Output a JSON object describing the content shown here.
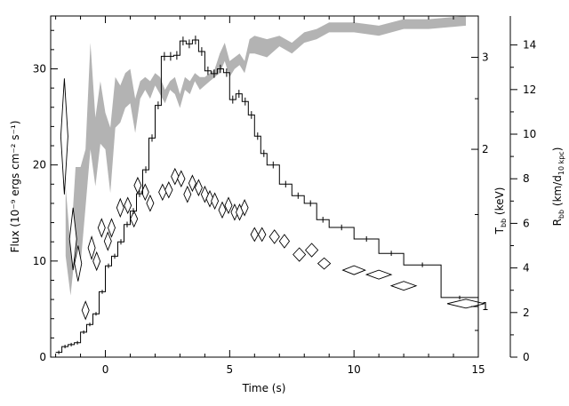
{
  "chart_data": {
    "type": "line",
    "title": "",
    "xlabel": "Time (s)",
    "ylabel": "Flux (10⁻⁹ ergs cm⁻² s⁻¹)",
    "xlim": [
      -2.2,
      15
    ],
    "ylim": [
      0,
      35.5
    ],
    "x_ticks": [
      0,
      5,
      10,
      15
    ],
    "y_ticks": [
      0,
      10,
      20,
      30
    ],
    "right_axes": [
      {
        "name": "T_bb",
        "label": "T",
        "label_sub": "bb",
        "label_unit": " (keV)",
        "scale": "log",
        "range": [
          0.8,
          3.6
        ],
        "ticks": [
          1,
          2,
          3
        ]
      },
      {
        "name": "R_bb",
        "label": "R",
        "label_sub": "bb",
        "label_unit": " (km/d",
        "label_unit_sub": "10 kpc",
        "label_unit_end": ")",
        "scale": "linear",
        "range": [
          0,
          15.3
        ],
        "ticks": [
          0,
          2,
          4,
          6,
          8,
          10,
          12,
          14
        ]
      }
    ],
    "series": [
      {
        "style": "histogram with error bars",
        "axis": "flux",
        "points": [
          [
            -2.0,
            0.5
          ],
          [
            -1.75,
            1.1
          ],
          [
            -1.5,
            1.3
          ],
          [
            -1.25,
            1.5
          ],
          [
            -1.0,
            2.6
          ],
          [
            -0.75,
            3.4
          ],
          [
            -0.5,
            4.5
          ],
          [
            -0.25,
            6.8
          ],
          [
            0.0,
            9.5
          ],
          [
            0.25,
            10.5
          ],
          [
            0.5,
            12.0
          ],
          [
            0.75,
            13.8
          ],
          [
            1.0,
            15.2
          ],
          [
            1.25,
            17.0
          ],
          [
            1.5,
            19.5
          ],
          [
            1.75,
            22.8
          ],
          [
            2.0,
            26.2
          ],
          [
            2.25,
            31.3
          ],
          [
            2.5,
            31.3
          ],
          [
            2.75,
            31.4
          ],
          [
            3.0,
            32.9
          ],
          [
            3.25,
            32.6
          ],
          [
            3.5,
            33.0
          ],
          [
            3.75,
            31.8
          ],
          [
            4.0,
            29.8
          ],
          [
            4.25,
            29.5
          ],
          [
            4.5,
            30.0
          ],
          [
            4.75,
            29.6
          ],
          [
            5.0,
            26.8
          ],
          [
            5.25,
            27.4
          ],
          [
            5.5,
            26.6
          ],
          [
            5.75,
            25.2
          ],
          [
            6.0,
            23.0
          ],
          [
            6.25,
            21.2
          ],
          [
            6.5,
            20.0
          ],
          [
            7.0,
            18.0
          ],
          [
            7.5,
            16.8
          ],
          [
            8.0,
            16.0
          ],
          [
            8.5,
            14.3
          ],
          [
            9.0,
            13.5
          ],
          [
            10.0,
            12.3
          ],
          [
            11.0,
            10.8
          ],
          [
            12.0,
            9.6
          ],
          [
            13.5,
            6.2
          ],
          [
            15.0,
            6.2
          ]
        ]
      },
      {
        "style": "shaded band",
        "axis": "T_bb",
        "x": [
          -1.6,
          -1.4,
          -1.2,
          -1.0,
          -0.8,
          -0.6,
          -0.4,
          -0.2,
          0.0,
          0.2,
          0.4,
          0.6,
          0.8,
          1.0,
          1.2,
          1.4,
          1.6,
          1.8,
          2.0,
          2.2,
          2.4,
          2.6,
          2.8,
          3.0,
          3.2,
          3.4,
          3.6,
          3.8,
          4.0,
          4.2,
          4.4,
          4.6,
          4.8,
          5.0,
          5.2,
          5.4,
          5.6,
          5.8,
          6.0,
          6.5,
          7.0,
          7.5,
          8.0,
          8.5,
          9.0,
          10.0,
          11.0,
          12.0,
          13.0,
          14.5
        ],
        "lower": [
          1.25,
          1.05,
          1.3,
          1.2,
          1.55,
          2.0,
          1.7,
          2.05,
          2.0,
          1.65,
          2.2,
          2.25,
          2.4,
          2.45,
          2.15,
          2.5,
          2.6,
          2.5,
          2.65,
          2.55,
          2.45,
          2.6,
          2.55,
          2.4,
          2.6,
          2.55,
          2.7,
          2.6,
          2.65,
          2.7,
          2.75,
          2.8,
          2.95,
          2.75,
          2.85,
          2.9,
          2.8,
          3.05,
          3.05,
          3.0,
          3.15,
          3.05,
          3.2,
          3.25,
          3.35,
          3.35,
          3.3,
          3.4,
          3.4,
          3.45
        ],
        "upper": [
          1.7,
          1.3,
          1.85,
          1.85,
          2.0,
          3.2,
          2.3,
          2.7,
          2.35,
          2.2,
          2.75,
          2.65,
          2.8,
          2.85,
          2.5,
          2.7,
          2.75,
          2.7,
          2.8,
          2.75,
          2.6,
          2.7,
          2.75,
          2.55,
          2.75,
          2.7,
          2.8,
          2.75,
          2.75,
          2.8,
          2.85,
          3.05,
          3.2,
          2.95,
          3.0,
          3.05,
          2.95,
          3.25,
          3.3,
          3.25,
          3.3,
          3.2,
          3.35,
          3.4,
          3.5,
          3.5,
          3.45,
          3.55,
          3.55,
          3.6
        ]
      },
      {
        "style": "diamonds with x error bars",
        "axis": "R_bb",
        "points": [
          [
            -1.65,
            9.9,
            0.12,
            2.6
          ],
          [
            -1.3,
            5.3,
            0.1,
            1.4
          ],
          [
            -1.1,
            4.2,
            0.1,
            0.8
          ],
          [
            -0.8,
            2.1,
            0.1,
            0.4
          ],
          [
            -0.55,
            4.9,
            0.1,
            0.5
          ],
          [
            -0.35,
            4.3,
            0.1,
            0.4
          ],
          [
            -0.15,
            5.8,
            0.1,
            0.4
          ],
          [
            0.1,
            5.2,
            0.1,
            0.4
          ],
          [
            0.25,
            5.8,
            0.1,
            0.4
          ],
          [
            0.6,
            6.7,
            0.12,
            0.4
          ],
          [
            0.9,
            6.8,
            0.12,
            0.35
          ],
          [
            1.15,
            6.2,
            0.12,
            0.35
          ],
          [
            1.3,
            7.7,
            0.12,
            0.35
          ],
          [
            1.6,
            7.4,
            0.12,
            0.35
          ],
          [
            1.8,
            6.9,
            0.12,
            0.35
          ],
          [
            2.3,
            7.4,
            0.15,
            0.35
          ],
          [
            2.55,
            7.5,
            0.15,
            0.35
          ],
          [
            2.8,
            8.1,
            0.15,
            0.35
          ],
          [
            3.05,
            8.0,
            0.15,
            0.35
          ],
          [
            3.3,
            7.3,
            0.12,
            0.35
          ],
          [
            3.5,
            7.8,
            0.12,
            0.35
          ],
          [
            3.75,
            7.6,
            0.12,
            0.35
          ],
          [
            4.0,
            7.3,
            0.12,
            0.35
          ],
          [
            4.2,
            7.1,
            0.12,
            0.35
          ],
          [
            4.4,
            7.0,
            0.12,
            0.35
          ],
          [
            4.7,
            6.6,
            0.12,
            0.35
          ],
          [
            4.95,
            6.8,
            0.12,
            0.35
          ],
          [
            5.2,
            6.5,
            0.12,
            0.35
          ],
          [
            5.4,
            6.5,
            0.12,
            0.35
          ],
          [
            5.6,
            6.7,
            0.12,
            0.35
          ],
          [
            6.0,
            5.5,
            0.15,
            0.3
          ],
          [
            6.3,
            5.5,
            0.15,
            0.3
          ],
          [
            6.8,
            5.4,
            0.2,
            0.3
          ],
          [
            7.2,
            5.2,
            0.2,
            0.3
          ],
          [
            7.8,
            4.6,
            0.25,
            0.3
          ],
          [
            8.3,
            4.8,
            0.25,
            0.3
          ],
          [
            8.8,
            4.2,
            0.25,
            0.25
          ],
          [
            10.0,
            3.9,
            0.45,
            0.2
          ],
          [
            11.0,
            3.7,
            0.5,
            0.2
          ],
          [
            12.0,
            3.2,
            0.5,
            0.2
          ],
          [
            14.5,
            2.4,
            0.75,
            0.15
          ]
        ]
      }
    ]
  }
}
